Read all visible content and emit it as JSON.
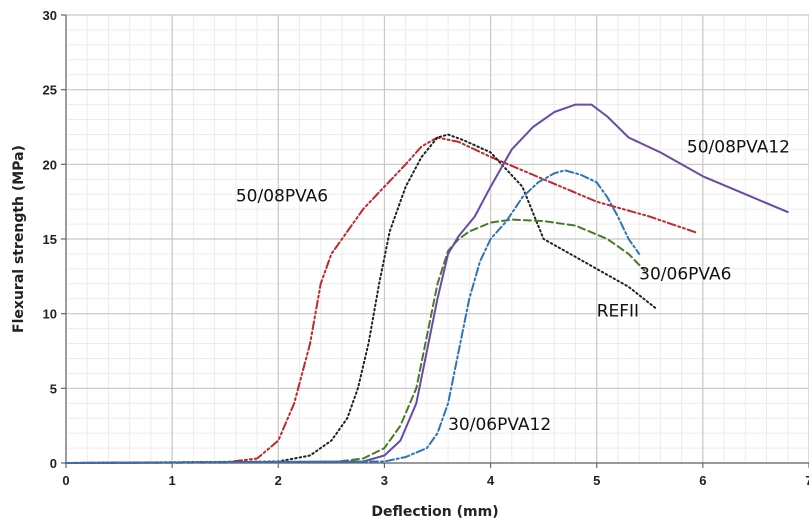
{
  "chart_data": {
    "type": "line",
    "xlabel": "Deflection (mm)",
    "ylabel": "Flexural strength (MPa)",
    "xlim": [
      0,
      7
    ],
    "ylim": [
      0,
      30
    ],
    "xticks": [
      0,
      1,
      2,
      3,
      4,
      5,
      6,
      7
    ],
    "yticks": [
      0,
      5,
      10,
      15,
      20,
      25,
      30
    ],
    "grid": true,
    "legend": "none",
    "series": [
      {
        "name": "50/08PVA6",
        "color": "#c0282d",
        "dash": "dash-dot-dot",
        "x": [
          0,
          1.5,
          1.8,
          2.0,
          2.15,
          2.3,
          2.4,
          2.5,
          2.65,
          2.8,
          3.0,
          3.2,
          3.35,
          3.5,
          3.7,
          4.0,
          4.5,
          5.0,
          5.5,
          5.95
        ],
        "y": [
          0,
          0.05,
          0.3,
          1.5,
          4.0,
          8.0,
          12.0,
          14.0,
          15.5,
          17.0,
          18.5,
          20.0,
          21.2,
          21.8,
          21.5,
          20.5,
          19.0,
          17.5,
          16.5,
          15.4
        ]
      },
      {
        "name": "REFII",
        "color": "#222222",
        "dash": "dotted",
        "x": [
          0,
          2.0,
          2.3,
          2.5,
          2.65,
          2.75,
          2.85,
          2.95,
          3.05,
          3.2,
          3.35,
          3.5,
          3.6,
          3.75,
          4.0,
          4.3,
          4.5,
          4.8,
          5.0,
          5.3,
          5.55
        ],
        "y": [
          0,
          0.1,
          0.5,
          1.5,
          3.0,
          5.0,
          8.0,
          12.0,
          15.5,
          18.5,
          20.5,
          21.8,
          22.0,
          21.6,
          20.8,
          18.5,
          15.0,
          13.8,
          13.0,
          11.8,
          10.4
        ]
      },
      {
        "name": "30/06PVA6",
        "color": "#4a7a28",
        "dash": "dashed",
        "x": [
          0,
          2.5,
          2.8,
          3.0,
          3.15,
          3.3,
          3.4,
          3.5,
          3.6,
          3.7,
          3.8,
          4.0,
          4.2,
          4.5,
          4.8,
          5.1,
          5.3,
          5.45
        ],
        "y": [
          0,
          0.05,
          0.3,
          1.0,
          2.5,
          5.0,
          8.5,
          12.0,
          14.2,
          15.0,
          15.5,
          16.1,
          16.3,
          16.2,
          15.9,
          15.0,
          14.0,
          12.9
        ]
      },
      {
        "name": "50/08PVA12",
        "color": "#6a4aa8",
        "dash": "solid",
        "x": [
          0,
          2.8,
          3.0,
          3.15,
          3.3,
          3.4,
          3.5,
          3.6,
          3.7,
          3.85,
          4.0,
          4.2,
          4.4,
          4.6,
          4.8,
          4.95,
          5.1,
          5.3,
          5.6,
          6.0,
          6.4,
          6.8
        ],
        "y": [
          0,
          0.1,
          0.5,
          1.5,
          4.0,
          7.5,
          11.0,
          14.0,
          15.2,
          16.5,
          18.5,
          21.0,
          22.5,
          23.5,
          24.0,
          24.0,
          23.2,
          21.8,
          20.8,
          19.2,
          18.0,
          16.8
        ]
      },
      {
        "name": "30/06PVA12",
        "color": "#2e75b6",
        "dash": "dash-dot",
        "x": [
          0,
          3.0,
          3.2,
          3.4,
          3.5,
          3.6,
          3.7,
          3.8,
          3.9,
          4.0,
          4.15,
          4.3,
          4.45,
          4.6,
          4.7,
          4.85,
          5.0,
          5.1,
          5.2,
          5.3,
          5.4
        ],
        "y": [
          0,
          0.1,
          0.4,
          1.0,
          2.0,
          4.0,
          7.5,
          11.0,
          13.5,
          15.0,
          16.2,
          17.8,
          18.8,
          19.4,
          19.6,
          19.3,
          18.8,
          17.8,
          16.5,
          15.0,
          14.0
        ]
      }
    ],
    "annotations": [
      {
        "text": "50/08PVA6",
        "x": 1.6,
        "y": 17.5,
        "anchor": "start"
      },
      {
        "text": "50/08PVA12",
        "x": 5.85,
        "y": 20.8,
        "anchor": "start"
      },
      {
        "text": "30/06PVA6",
        "x": 5.4,
        "y": 12.3,
        "anchor": "start"
      },
      {
        "text": "REFII",
        "x": 5.0,
        "y": 9.8,
        "anchor": "start"
      },
      {
        "text": "30/06PVA12",
        "x": 3.6,
        "y": 2.2,
        "anchor": "start"
      }
    ]
  }
}
